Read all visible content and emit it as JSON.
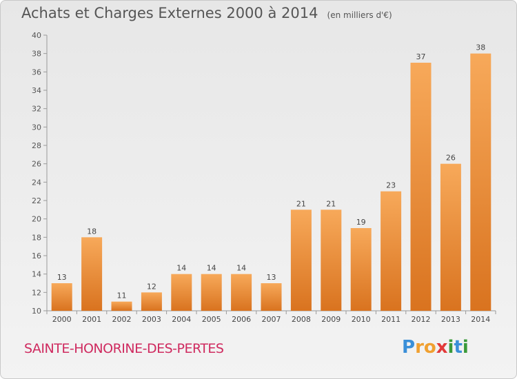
{
  "title": "Achats et Charges Externes 2000 à 2014",
  "unit_label": "(en milliers d'€)",
  "commune": "SAINTE-HONORINE-DES-PERTES",
  "logo": {
    "letters": [
      "P",
      "r",
      "o",
      "x",
      "i",
      "t",
      "i"
    ],
    "colors": [
      "#3a8fd8",
      "#f0a030",
      "#f0a030",
      "#e23a3a",
      "#3a9a3a",
      "#3a8fd8",
      "#3a9a3a"
    ]
  },
  "colors": {
    "bar_light": "#f7a95a",
    "bar_dark": "#d9731f",
    "title": "#555555",
    "commune": "#cf2a5f"
  },
  "chart_data": {
    "type": "bar",
    "title": "Achats et Charges Externes 2000 à 2014",
    "subtitle": "(en milliers d'€)",
    "xlabel": "",
    "ylabel": "",
    "categories": [
      "2000",
      "2001",
      "2002",
      "2003",
      "2004",
      "2005",
      "2006",
      "2007",
      "2008",
      "2009",
      "2010",
      "2011",
      "2012",
      "2013",
      "2014"
    ],
    "values": [
      13,
      18,
      11,
      12,
      14,
      14,
      14,
      13,
      21,
      21,
      19,
      23,
      37,
      26,
      38
    ],
    "ylim": [
      10,
      40
    ],
    "yticks": [
      10,
      12,
      14,
      16,
      18,
      20,
      22,
      24,
      26,
      28,
      30,
      32,
      34,
      36,
      38,
      40
    ],
    "grid": false,
    "data_labels": true
  }
}
